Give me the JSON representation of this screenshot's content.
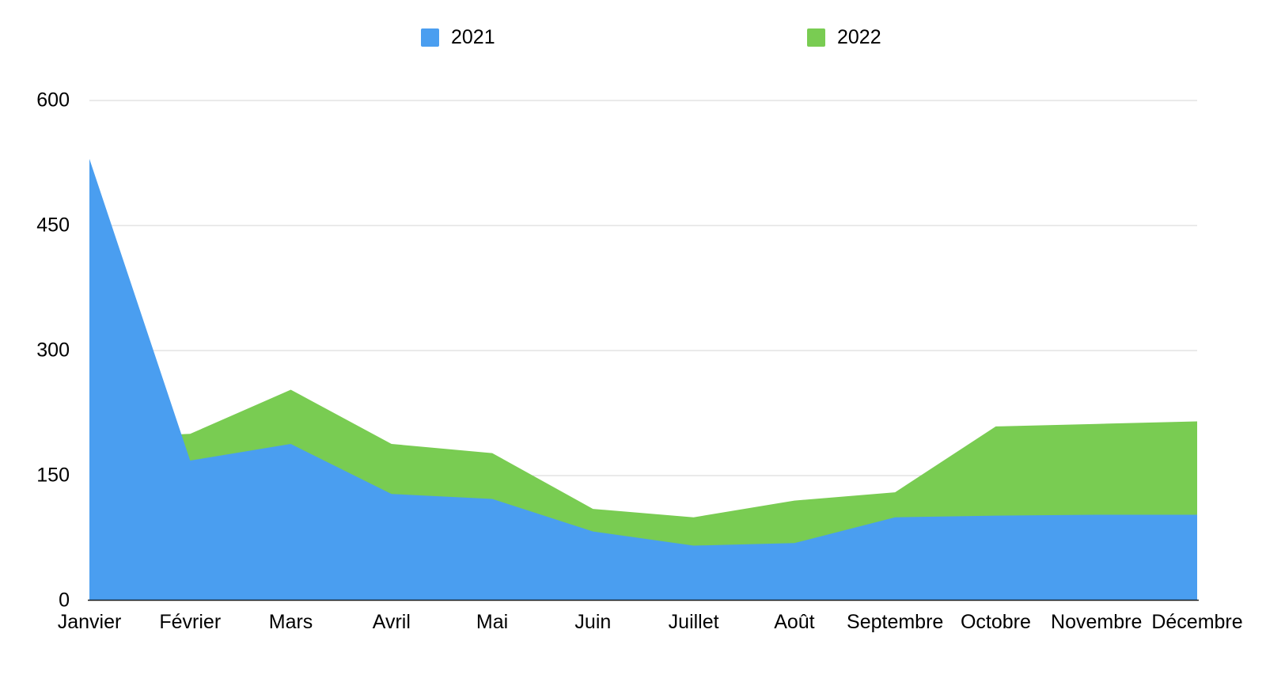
{
  "page": {
    "background": "#ffffff"
  },
  "chart_data": {
    "type": "area",
    "variant": "layered-overlapping",
    "title": "",
    "xlabel": "",
    "ylabel": "",
    "categories": [
      "Janvier",
      "Février",
      "Mars",
      "Avril",
      "Mai",
      "Juin",
      "Juillet",
      "Août",
      "Septembre",
      "Octobre",
      "Novembre",
      "Décembre"
    ],
    "series": [
      {
        "name": "2021",
        "color": "#4A9EF0",
        "values": [
          530,
          168,
          188,
          128,
          122,
          83,
          66,
          69,
          100,
          102,
          103,
          103
        ]
      },
      {
        "name": "2022",
        "color": "#79CC52",
        "values": [
          195,
          200,
          253,
          188,
          177,
          110,
          100,
          120,
          130,
          209,
          212,
          215
        ]
      }
    ],
    "ylim": [
      0,
      600
    ],
    "y_ticks": [
      0,
      150,
      300,
      450,
      600
    ],
    "grid": true,
    "gridline_color": "#D6D6D6",
    "axis_line_color": "#1A1A1A",
    "tick_label_color": "#000000",
    "legend_position": "top"
  }
}
